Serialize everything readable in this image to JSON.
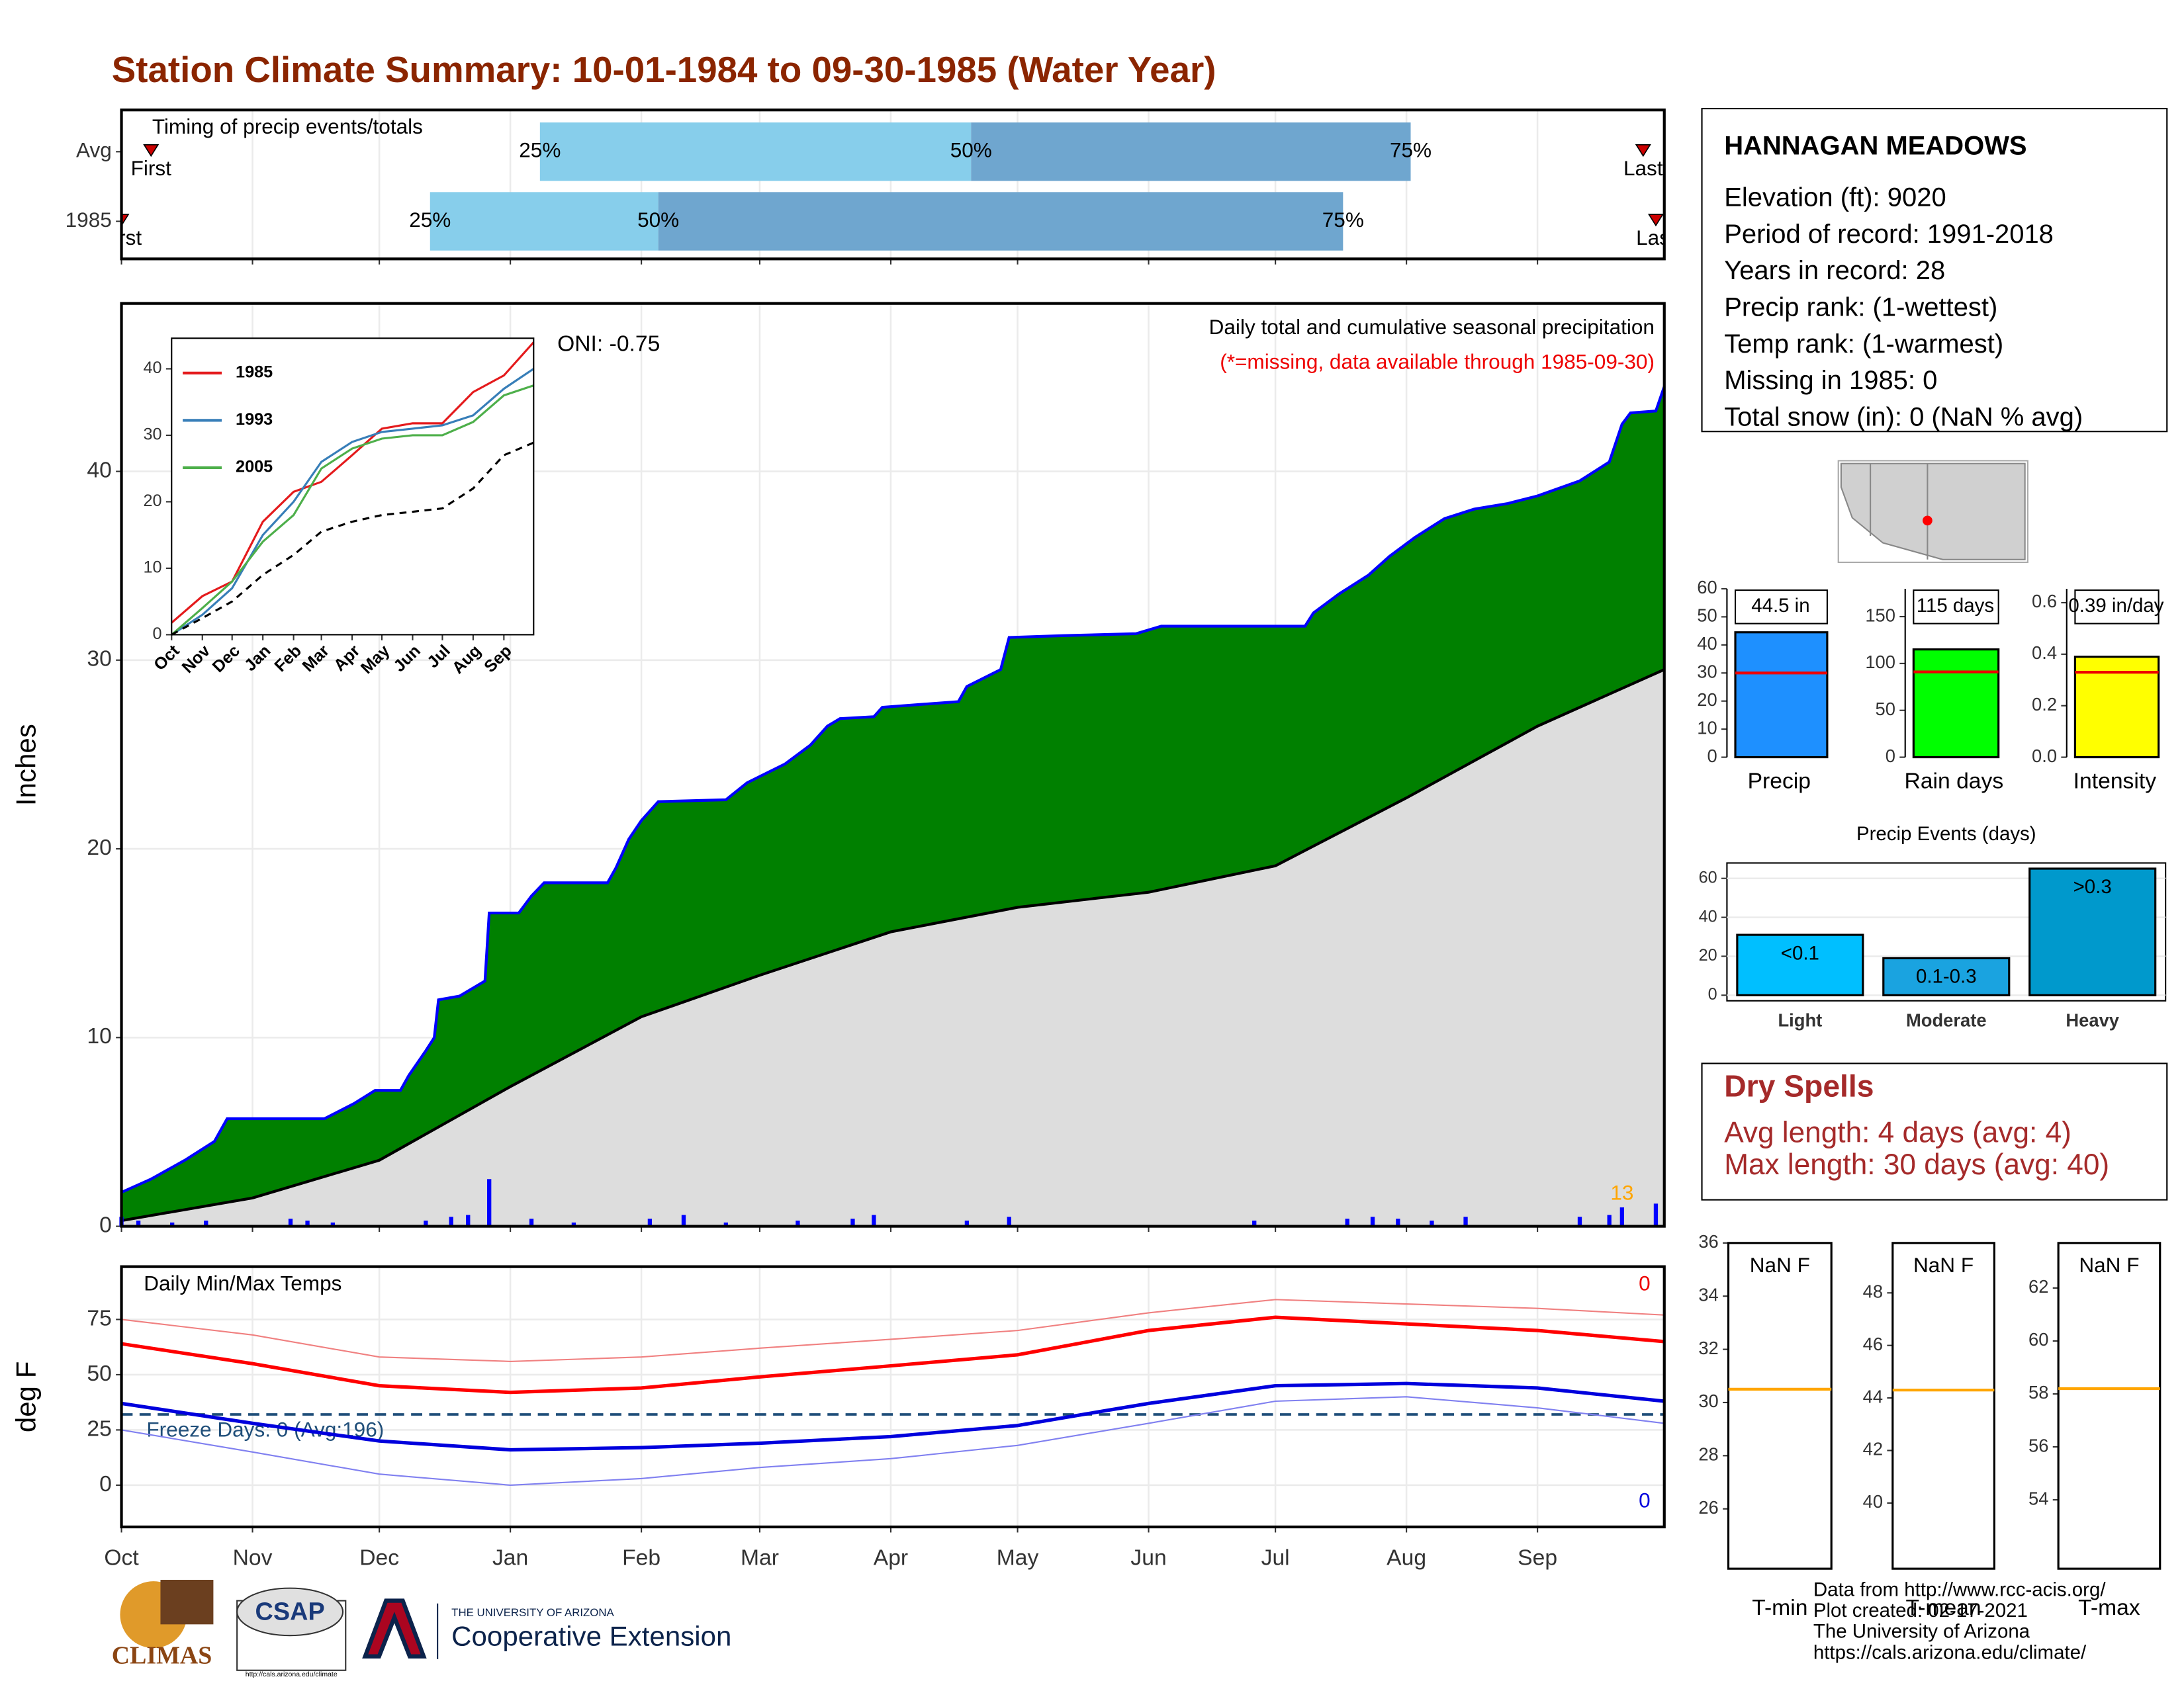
{
  "header": {
    "title": "Station Climate Summary: 10-01-1984 to 09-30-1985 (Water Year)"
  },
  "station": {
    "name": "HANNAGAN MEADOWS",
    "lines": [
      "Elevation (ft): 9020",
      "Period of record: 1991-2018",
      "Years in record: 28",
      "Precip rank:  (1-wettest)",
      "Temp rank:  (1-warmest)",
      "Missing in 1985: 0",
      "Total snow (in): 0 (NaN % avg)"
    ]
  },
  "dry_spells": {
    "title": "Dry Spells",
    "lines": [
      "Avg length: 4 days (avg: 4)",
      "Max length: 30 days (avg: 40)"
    ]
  },
  "footer": {
    "lines": [
      "Data from http://www.rcc-acis.org/",
      "Plot created: 02-17-2021",
      "The University of Arizona",
      "https://cals.arizona.edu/climate/"
    ]
  },
  "logos": {
    "climas": "CLIMAS",
    "csap": "CSAP",
    "csap_url": "http://cals.arizona.edu/climate",
    "univ": "THE UNIVERSITY OF ARIZONA",
    "ext": "Cooperative Extension"
  },
  "chart_data": [
    {
      "type": "timing",
      "title": "Timing of precip events/totals",
      "xlim": [
        0,
        365
      ],
      "xticks": [
        0,
        31,
        61,
        92,
        123,
        151,
        182,
        212,
        243,
        273,
        304,
        335
      ],
      "quantile_labels": [
        "25%",
        "50%",
        "75%"
      ],
      "first_label": "First",
      "last_label": "Last",
      "light_color": "#87ceeb",
      "dark_color": "#6fa6cf",
      "marker_color": "#cc0000",
      "rows": [
        {
          "name": "Avg",
          "first": 7,
          "q25": 99,
          "q50": 201,
          "q75": 305,
          "last": 360
        },
        {
          "name": "1985",
          "first": 0,
          "q25": 73,
          "q50": 127,
          "q75": 289,
          "last": 363
        }
      ]
    },
    {
      "type": "area",
      "ylabel": "Inches",
      "xlim": [
        0,
        365
      ],
      "ylim": [
        0,
        48.9
      ],
      "yticks": [
        0,
        10,
        20,
        30,
        40
      ],
      "xticks": [
        0,
        31,
        61,
        92,
        123,
        151,
        182,
        212,
        243,
        273,
        304,
        335
      ],
      "grid": true,
      "oni": "ONI: -0.75",
      "subtitle": "Daily total and cumulative seasonal precipitation",
      "note": "(*=missing, data available through 1985-09-30)",
      "count_label": "13",
      "series": [
        {
          "color": "#0000ff",
          "fill": "#008000",
          "x": [
            0,
            7,
            15,
            22,
            25,
            48,
            55,
            60,
            66,
            68,
            72,
            74,
            75,
            80,
            86,
            87,
            94,
            97,
            100,
            115,
            117,
            120,
            123,
            127,
            143,
            148,
            157,
            163,
            167,
            170,
            178,
            180,
            198,
            200,
            208,
            210,
            223,
            240,
            246,
            280,
            282,
            288,
            295,
            300,
            306,
            313,
            320,
            328,
            335,
            345,
            352,
            355,
            357,
            363,
            365
          ],
          "values": [
            1.8,
            2.5,
            3.5,
            4.5,
            5.7,
            5.7,
            6.5,
            7.2,
            7.2,
            8.0,
            9.3,
            10.0,
            12.0,
            12.2,
            13.0,
            16.6,
            16.6,
            17.5,
            18.2,
            18.2,
            19.0,
            20.5,
            21.5,
            22.5,
            22.6,
            23.5,
            24.5,
            25.5,
            26.5,
            26.9,
            27.0,
            27.5,
            27.8,
            28.6,
            29.5,
            31.2,
            31.3,
            31.4,
            31.8,
            31.8,
            32.5,
            33.5,
            34.5,
            35.5,
            36.5,
            37.5,
            38.0,
            38.3,
            38.7,
            39.5,
            40.5,
            42.5,
            43.1,
            43.2,
            44.5
          ]
        },
        {
          "color": "#000000",
          "fill": "#dddddd",
          "x": [
            0,
            31,
            61,
            92,
            123,
            151,
            182,
            212,
            243,
            273,
            304,
            335,
            365
          ],
          "values": [
            0.3,
            1.5,
            3.5,
            7.4,
            11.1,
            13.3,
            15.6,
            16.9,
            17.7,
            19.1,
            22.7,
            26.5,
            29.5
          ]
        }
      ],
      "bars": {
        "color": "#0000ff",
        "x": [
          0,
          4,
          12,
          20,
          40,
          44,
          50,
          72,
          78,
          82,
          87,
          97,
          107,
          125,
          133,
          143,
          160,
          173,
          178,
          200,
          210,
          268,
          290,
          296,
          302,
          310,
          318,
          345,
          352,
          355,
          363
        ],
        "values": [
          0.5,
          0.3,
          0.2,
          0.3,
          0.4,
          0.3,
          0.2,
          0.3,
          0.5,
          0.6,
          2.5,
          0.4,
          0.2,
          0.4,
          0.6,
          0.2,
          0.3,
          0.4,
          0.6,
          0.3,
          0.5,
          0.3,
          0.4,
          0.5,
          0.4,
          0.3,
          0.5,
          0.5,
          0.6,
          1.0,
          1.2
        ]
      }
    },
    {
      "type": "line",
      "xlim": [
        0,
        365
      ],
      "ylim": [
        0,
        44.6
      ],
      "yticks": [
        0,
        10,
        20,
        30,
        40
      ],
      "xticks": [
        {
          "value": 0,
          "label": "Oct"
        },
        {
          "value": 31,
          "label": "Nov"
        },
        {
          "value": 61,
          "label": "Dec"
        },
        {
          "value": 92,
          "label": "Jan"
        },
        {
          "value": 123,
          "label": "Feb"
        },
        {
          "value": 151,
          "label": "Mar"
        },
        {
          "value": 182,
          "label": "Apr"
        },
        {
          "value": 212,
          "label": "May"
        },
        {
          "value": 243,
          "label": "Jun"
        },
        {
          "value": 273,
          "label": "Jul"
        },
        {
          "value": 304,
          "label": "Aug"
        },
        {
          "value": 335,
          "label": "Sep"
        }
      ],
      "x": [
        0,
        31,
        61,
        92,
        123,
        151,
        182,
        212,
        243,
        273,
        304,
        335,
        365
      ],
      "series": [
        {
          "name": "1985",
          "color": "#e41a1c",
          "values": [
            1.8,
            5.8,
            8.0,
            17.0,
            21.5,
            23.0,
            27.0,
            31.0,
            31.8,
            31.8,
            36.5,
            39.0,
            44.0
          ]
        },
        {
          "name": "1993",
          "color": "#377eb8",
          "values": [
            0,
            3,
            7,
            15,
            20,
            26,
            29,
            30.5,
            31,
            31.5,
            33,
            37,
            40
          ]
        },
        {
          "name": "2005",
          "color": "#4daf4a",
          "values": [
            0,
            4,
            8,
            14,
            18,
            25,
            28,
            29.5,
            30,
            30,
            32,
            36,
            37.5
          ]
        },
        {
          "color": "#000000",
          "dash": true,
          "values": [
            0,
            2.5,
            5,
            9,
            12,
            15.5,
            17,
            18,
            18.5,
            19,
            22,
            27,
            28.9
          ]
        }
      ]
    },
    {
      "type": "line",
      "title": "Daily Min/Max Temps",
      "ylabel": "deg F",
      "xlim": [
        0,
        365
      ],
      "ylim": [
        -18.9,
        98.9
      ],
      "yticks": [
        0,
        25,
        50,
        75
      ],
      "grid": true,
      "xticks": [
        {
          "value": 0,
          "label": "Oct"
        },
        {
          "value": 31,
          "label": "Nov"
        },
        {
          "value": 61,
          "label": "Dec"
        },
        {
          "value": 92,
          "label": "Jan"
        },
        {
          "value": 123,
          "label": "Feb"
        },
        {
          "value": 151,
          "label": "Mar"
        },
        {
          "value": 182,
          "label": "Apr"
        },
        {
          "value": 212,
          "label": "May"
        },
        {
          "value": 243,
          "label": "Jun"
        },
        {
          "value": 273,
          "label": "Jul"
        },
        {
          "value": 304,
          "label": "Aug"
        },
        {
          "value": 335,
          "label": "Sep"
        }
      ],
      "x": [
        0,
        31,
        61,
        92,
        123,
        151,
        182,
        212,
        243,
        273,
        304,
        335,
        365
      ],
      "series": [
        {
          "color": "#f08080",
          "thin": true,
          "values": [
            75,
            68,
            58,
            56,
            58,
            62,
            66,
            70,
            78,
            84,
            82,
            80,
            77
          ]
        },
        {
          "color": "#ff0000",
          "values": [
            64,
            55,
            45,
            42,
            44,
            49,
            54,
            59,
            70,
            76,
            73,
            70,
            65
          ]
        },
        {
          "color": "#8080f0",
          "thin": true,
          "values": [
            25,
            15,
            5,
            0,
            3,
            8,
            12,
            18,
            28,
            38,
            40,
            35,
            28
          ]
        },
        {
          "color": "#0000dd",
          "values": [
            37,
            28,
            20,
            16,
            17,
            19,
            22,
            27,
            37,
            45,
            46,
            44,
            38
          ]
        }
      ],
      "freeze": {
        "value": 32,
        "color": "#1f4e79",
        "label": "Freeze Days: 0 (Avg:196)"
      },
      "max_missing": "0",
      "min_missing": "0"
    },
    {
      "type": "bar",
      "categories": [
        "Precip"
      ],
      "values": [
        44.5
      ],
      "value_labels": [
        "44.5 in"
      ],
      "average": 30,
      "color": "#1e90ff",
      "ylim": [
        0,
        60
      ],
      "yticks": [
        0,
        10,
        20,
        30,
        40,
        50,
        60
      ]
    },
    {
      "type": "bar",
      "categories": [
        "Rain days"
      ],
      "values": [
        115
      ],
      "value_labels": [
        "115 days"
      ],
      "average": 91,
      "color": "#00ff00",
      "ylim": [
        0,
        179.7
      ],
      "yticks": [
        0,
        50,
        100,
        150
      ]
    },
    {
      "type": "bar",
      "categories": [
        "Intensity"
      ],
      "values": [
        0.39
      ],
      "value_labels": [
        "0.39 in/day"
      ],
      "average": 0.33,
      "color": "#ffff00",
      "ylim": [
        0,
        0.654
      ],
      "yticks": [
        {
          "value": 0,
          "label": "0.0"
        },
        0.2,
        0.4,
        0.6
      ]
    },
    {
      "type": "events",
      "title": "Precip Events (days)",
      "categories": [
        "Light",
        "Moderate",
        "Heavy"
      ],
      "values": [
        31,
        19,
        65
      ],
      "bin_labels": [
        "<0.1",
        "0.1-0.3",
        ">0.3"
      ],
      "colors": [
        "#00bfff",
        "#1aa3e0",
        "#0099cc"
      ],
      "ylim": [
        0,
        67.9
      ],
      "yticks": [
        0,
        20,
        40,
        60
      ]
    },
    {
      "type": "box",
      "categories": [
        "T-min"
      ],
      "values": [
        null
      ],
      "value_labels": [
        "NaN F"
      ],
      "average": 30.5,
      "color": "#ffa500",
      "ylim": [
        23.75,
        36
      ],
      "yticks": [
        26,
        28,
        30,
        32,
        34,
        36
      ]
    },
    {
      "type": "box",
      "categories": [
        "T-mean"
      ],
      "values": [
        null
      ],
      "value_labels": [
        "NaN F"
      ],
      "average": 44.3,
      "color": "#ffa500",
      "ylim": [
        37.5,
        49.9
      ],
      "yticks": [
        40,
        42,
        44,
        46,
        48
      ]
    },
    {
      "type": "box",
      "categories": [
        "T-max"
      ],
      "values": [
        null
      ],
      "value_labels": [
        "NaN F"
      ],
      "average": 58.2,
      "color": "#ffa500",
      "ylim": [
        51.4,
        63.7
      ],
      "yticks": [
        54,
        56,
        58,
        60,
        62
      ]
    }
  ]
}
